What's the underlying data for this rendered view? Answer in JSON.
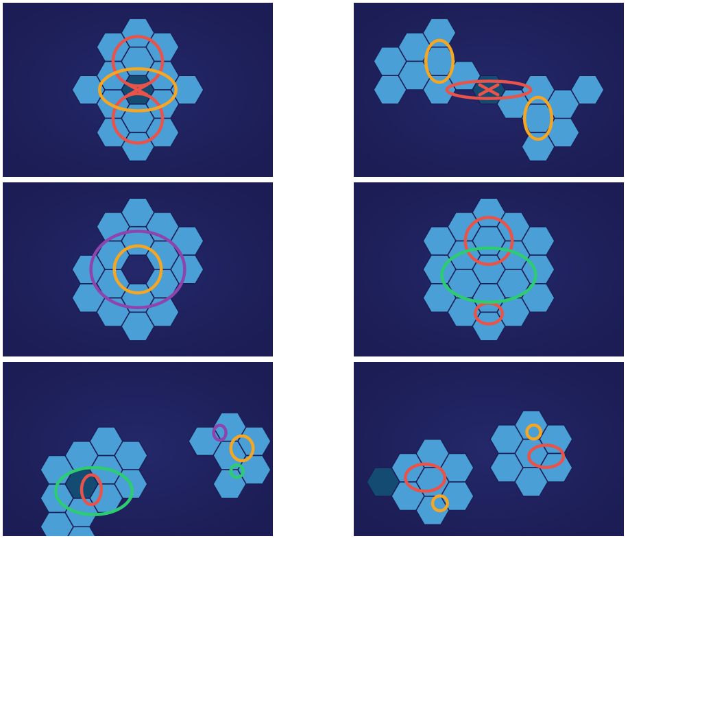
{
  "colors": {
    "panel_bg_center": "#24286a",
    "panel_bg_edge": "#1c1d55",
    "tile": "#4a9fd6",
    "tile_dark": "#134b72",
    "tile_outline": "#1b1f55",
    "red": "#e8534a",
    "orange": "#f5a623",
    "purple": "#8e44ad",
    "green": "#2ecc71"
  },
  "puzzles": [
    {
      "name": "puzzle-1",
      "tiles": [
        {
          "q": 0,
          "r": 0,
          "dark": true
        },
        {
          "q": 1,
          "r": -1
        },
        {
          "q": 1,
          "r": 0
        },
        {
          "q": 0,
          "r": 1
        },
        {
          "q": -1,
          "r": 1
        },
        {
          "q": -1,
          "r": 0
        },
        {
          "q": 0,
          "r": -1
        },
        {
          "q": 0,
          "r": -2
        },
        {
          "q": 1,
          "r": -2
        },
        {
          "q": -1,
          "r": -1
        },
        {
          "q": 0,
          "r": 2
        },
        {
          "q": 1,
          "r": 1
        },
        {
          "q": -1,
          "r": 2
        },
        {
          "q": 2,
          "r": -1
        },
        {
          "q": -2,
          "r": 1
        }
      ],
      "loops": [
        {
          "color": "red",
          "shape": "ellipse",
          "tile": [
            0,
            -1
          ],
          "rx": 1.0,
          "ry": 1.0
        },
        {
          "color": "red",
          "shape": "ellipse",
          "tile": [
            0,
            1
          ],
          "rx": 1.0,
          "ry": 1.0
        },
        {
          "color": "orange",
          "shape": "ellipse",
          "tile": [
            0,
            0
          ],
          "rx": 1.55,
          "ry": 0.85
        },
        {
          "color": "red",
          "shape": "cross",
          "tile": [
            0,
            0
          ],
          "size": 0.55
        }
      ]
    },
    {
      "name": "puzzle-2",
      "tiles": [
        {
          "q": 0,
          "r": 0,
          "dark": true
        },
        {
          "q": -1,
          "r": 0
        },
        {
          "q": 1,
          "r": 0
        },
        {
          "q": -2,
          "r": 0
        },
        {
          "q": -3,
          "r": 0
        },
        {
          "q": -2,
          "r": -1
        },
        {
          "q": -2,
          "r": 1
        },
        {
          "q": -3,
          "r": 1
        },
        {
          "q": -4,
          "r": 1
        },
        {
          "q": -4,
          "r": 2
        },
        {
          "q": 2,
          "r": 0
        },
        {
          "q": 3,
          "r": 0
        },
        {
          "q": 2,
          "r": -1
        },
        {
          "q": 3,
          "r": -1
        },
        {
          "q": 4,
          "r": -2
        },
        {
          "q": 2,
          "r": 1
        }
      ],
      "loops": [
        {
          "color": "orange",
          "shape": "ellipse",
          "tile": [
            -2,
            0
          ],
          "rx": 0.55,
          "ry": 0.85
        },
        {
          "color": "orange",
          "shape": "ellipse",
          "tile": [
            2,
            0
          ],
          "rx": 0.55,
          "ry": 0.85
        },
        {
          "color": "red",
          "shape": "ellipse",
          "tile": [
            0,
            0
          ],
          "rx": 1.7,
          "ry": 0.35
        },
        {
          "color": "red",
          "shape": "cross",
          "tile": [
            0,
            0
          ],
          "size": 0.55
        }
      ]
    },
    {
      "name": "puzzle-3",
      "tiles": [
        {
          "q": 0,
          "r": -1
        },
        {
          "q": 1,
          "r": -1
        },
        {
          "q": 1,
          "r": 0
        },
        {
          "q": 0,
          "r": 1
        },
        {
          "q": -1,
          "r": 1
        },
        {
          "q": -1,
          "r": 0
        },
        {
          "q": 0,
          "r": -2
        },
        {
          "q": 2,
          "r": -2
        },
        {
          "q": 2,
          "r": -1
        },
        {
          "q": 0,
          "r": 2
        },
        {
          "q": -2,
          "r": 2
        },
        {
          "q": -2,
          "r": 1
        },
        {
          "q": 1,
          "r": 1
        },
        {
          "q": -1,
          "r": -1
        },
        {
          "q": 1,
          "r": -2
        },
        {
          "q": -1,
          "r": 2
        }
      ],
      "loops": [
        {
          "color": "orange",
          "shape": "ellipse",
          "tile": [
            0,
            0
          ],
          "rx": 0.95,
          "ry": 0.95
        },
        {
          "color": "purple",
          "shape": "ellipse",
          "tile": [
            0,
            0
          ],
          "rx": 1.9,
          "ry": 1.55
        }
      ]
    },
    {
      "name": "puzzle-4",
      "tiles": [
        {
          "q": 0,
          "r": -2
        },
        {
          "q": -1,
          "r": -1
        },
        {
          "q": 1,
          "r": -2
        },
        {
          "q": 0,
          "r": -1
        },
        {
          "q": -2,
          "r": 0
        },
        {
          "q": -1,
          "r": 0
        },
        {
          "q": 1,
          "r": -1
        },
        {
          "q": 2,
          "r": -2
        },
        {
          "q": -2,
          "r": 1
        },
        {
          "q": 0,
          "r": 0
        },
        {
          "q": 2,
          "r": -1
        },
        {
          "q": -1,
          "r": 1
        },
        {
          "q": 1,
          "r": 0
        },
        {
          "q": -2,
          "r": 2
        },
        {
          "q": 2,
          "r": 0
        },
        {
          "q": -1,
          "r": 2
        },
        {
          "q": 0,
          "r": 1
        },
        {
          "q": 1,
          "r": 1
        },
        {
          "q": 0,
          "r": 2
        }
      ],
      "loops": [
        {
          "color": "red",
          "shape": "ellipse",
          "tile": [
            0,
            -1
          ],
          "rx": 0.95,
          "ry": 0.95
        },
        {
          "color": "red",
          "shape": "ellipse",
          "tile": [
            0,
            1.55
          ],
          "rx": 0.55,
          "ry": 0.42
        },
        {
          "color": "green",
          "shape": "ellipse",
          "tile": [
            0,
            0.2
          ],
          "rx": 1.9,
          "ry": 1.1
        }
      ]
    },
    {
      "name": "puzzle-5",
      "tiles": [
        {
          "q": 0,
          "r": 0,
          "dark": true
        },
        {
          "q": 1,
          "r": -1
        },
        {
          "q": 1,
          "r": 0
        },
        {
          "q": 0,
          "r": 1
        },
        {
          "q": -1,
          "r": 1
        },
        {
          "q": -1,
          "r": 0
        },
        {
          "q": 0,
          "r": -1
        },
        {
          "q": 1,
          "r": -2
        },
        {
          "q": 2,
          "r": -2
        },
        {
          "q": 2,
          "r": -1
        },
        {
          "q": 0,
          "r": 2
        },
        {
          "q": -1,
          "r": 2
        },
        {
          "q": 6,
          "r": -5
        },
        {
          "q": 5,
          "r": -4
        },
        {
          "q": 6,
          "r": -4
        },
        {
          "q": 7,
          "r": -5
        },
        {
          "q": 6,
          "r": -3
        },
        {
          "q": 7,
          "r": -4
        }
      ],
      "loops": [
        {
          "color": "green",
          "shape": "ellipse",
          "tile": [
            0.5,
            0
          ],
          "rx": 1.55,
          "ry": 0.95
        },
        {
          "color": "red",
          "shape": "ellipse",
          "tile": [
            0.4,
            0
          ],
          "rx": 0.4,
          "ry": 0.6
        },
        {
          "color": "purple",
          "shape": "ellipse",
          "tile": [
            5.6,
            -4.6
          ],
          "rx": 0.25,
          "ry": 0.3
        },
        {
          "color": "orange",
          "shape": "ellipse",
          "tile": [
            6.5,
            -4.5
          ],
          "rx": 0.45,
          "ry": 0.5
        },
        {
          "color": "green",
          "shape": "ellipse",
          "tile": [
            6.3,
            -3.6
          ],
          "rx": 0.25,
          "ry": 0.25
        }
      ]
    },
    {
      "name": "puzzle-6",
      "tiles": [
        {
          "q": 0,
          "r": -1
        },
        {
          "q": -1,
          "r": 0
        },
        {
          "q": 1,
          "r": -1
        },
        {
          "q": 0,
          "r": 0
        },
        {
          "q": -2,
          "r": 1,
          "dark": true
        },
        {
          "q": 1,
          "r": 0
        },
        {
          "q": -1,
          "r": 1
        },
        {
          "q": 0,
          "r": 1
        },
        {
          "q": 4,
          "r": -4
        },
        {
          "q": 3,
          "r": -3
        },
        {
          "q": 5,
          "r": -4
        },
        {
          "q": 4,
          "r": -3
        },
        {
          "q": 3,
          "r": -2
        },
        {
          "q": 5,
          "r": -3
        },
        {
          "q": 4,
          "r": -2
        }
      ],
      "loops": [
        {
          "color": "red",
          "shape": "ellipse",
          "tile": [
            -0.3,
            0
          ],
          "rx": 0.8,
          "ry": 0.55
        },
        {
          "color": "orange",
          "shape": "ellipse",
          "tile": [
            0.3,
            0.6
          ],
          "rx": 0.3,
          "ry": 0.3
        },
        {
          "color": "orange",
          "shape": "ellipse",
          "tile": [
            4.1,
            -3.8
          ],
          "rx": 0.28,
          "ry": 0.28
        },
        {
          "color": "red",
          "shape": "ellipse",
          "tile": [
            4.6,
            -3.2
          ],
          "rx": 0.7,
          "ry": 0.45
        }
      ]
    }
  ]
}
